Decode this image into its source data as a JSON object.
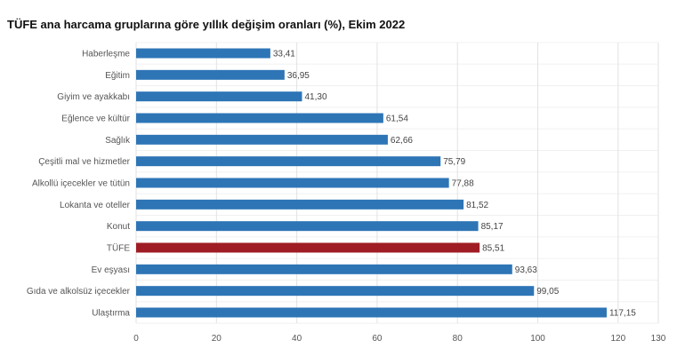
{
  "chart_data": {
    "type": "bar",
    "orientation": "horizontal",
    "title": "TÜFE ana harcama gruplarına göre yıllık değişim oranları (%), Ekim 2022",
    "categories": [
      "Haberleşme",
      "Eğitim",
      "Giyim ve ayakkabı",
      "Eğlence ve kültür",
      "Sağlık",
      "Çeşitli mal ve hizmetler",
      "Alkollü içecekler ve tütün",
      "Lokanta ve oteller",
      "Konut",
      "TÜFE",
      "Ev eşyası",
      "Gıda ve alkolsüz içecekler",
      "Ulaştırma"
    ],
    "values": [
      33.41,
      36.95,
      41.3,
      61.54,
      62.66,
      75.79,
      77.88,
      81.52,
      85.17,
      85.51,
      93.63,
      99.05,
      117.15
    ],
    "value_labels": [
      "33,41",
      "36,95",
      "41,30",
      "61,54",
      "62,66",
      "75,79",
      "77,88",
      "81,52",
      "85,17",
      "85,51",
      "93,63",
      "99,05",
      "117,15"
    ],
    "xlim": [
      0,
      130
    ],
    "xticks": [
      "0",
      "20",
      "40",
      "60",
      "80",
      "100",
      "120",
      "130"
    ],
    "grid": true,
    "colors": {
      "bar": "#2e75b6",
      "highlight": "#a01c24",
      "grid": "#e2e2e2"
    },
    "highlight_category": "TÜFE"
  }
}
